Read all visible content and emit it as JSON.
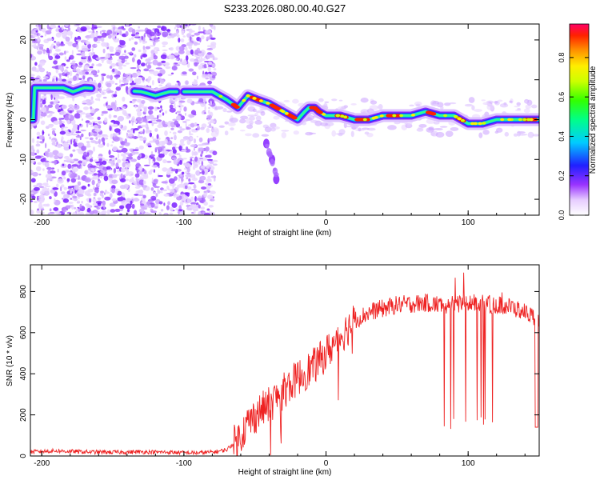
{
  "title": "S233.2026.080.00.40.G27",
  "chart_data": [
    {
      "type": "heatmap",
      "xlabel": "Height of straight line (km)",
      "ylabel": "Frequency (Hz)",
      "xlim": [
        -208,
        150
      ],
      "ylim": [
        -24,
        24
      ],
      "xticks": [
        -200,
        -100,
        0,
        100
      ],
      "yticks": [
        -20,
        -10,
        0,
        10,
        20
      ],
      "colorbar": {
        "label": "Normalized spectral amplitude",
        "range": [
          0,
          0.97
        ],
        "ticks": [
          "0.0",
          "0.2",
          "0.4",
          "0.6",
          "0.8"
        ],
        "tick_values": [
          0,
          0.2,
          0.4,
          0.6,
          0.8
        ]
      },
      "ridge": {
        "x": [
          -205,
          -195,
          -185,
          -178,
          -170,
          -130,
          -120,
          -110,
          -100,
          -90,
          -80,
          -70,
          -62,
          -55,
          -48,
          -40,
          -30,
          -25,
          -20,
          -15,
          -12,
          -8,
          -5,
          0,
          10,
          20,
          30,
          40,
          50,
          60,
          70,
          80,
          90,
          100,
          110,
          120,
          130,
          140,
          150
        ],
        "y": [
          8,
          8,
          8,
          7,
          8,
          7,
          6,
          7,
          7,
          7,
          7,
          5,
          3,
          6,
          5,
          4,
          2,
          1,
          0,
          2,
          3,
          3,
          2,
          1,
          1,
          0,
          0,
          1,
          1,
          1,
          2,
          1,
          1,
          -1,
          -1,
          0,
          0,
          0,
          0
        ]
      },
      "secondary_trace": {
        "x": [
          -42,
          -38,
          -35
        ],
        "y": [
          -6,
          -10,
          -15
        ]
      }
    },
    {
      "type": "line",
      "xlabel": "Height of straight line (km)",
      "ylabel": "SNR (10 * v/v)",
      "xlim": [
        -208,
        150
      ],
      "ylim": [
        0,
        930
      ],
      "xticks": [
        -200,
        -100,
        0,
        100
      ],
      "yticks": [
        0,
        200,
        400,
        600,
        800
      ],
      "series": [
        {
          "color": "#ee2222",
          "x": [
            -208,
            -190,
            -170,
            -150,
            -130,
            -110,
            -90,
            -78,
            -70,
            -62,
            -55,
            -48,
            -40,
            -32,
            -25,
            -18,
            -10,
            -5,
            0,
            5,
            10,
            15,
            20,
            28,
            35,
            42,
            50,
            60,
            70,
            80,
            90,
            100,
            110,
            120,
            130,
            140,
            150
          ],
          "values": [
            20,
            25,
            20,
            18,
            20,
            18,
            15,
            20,
            30,
            80,
            160,
            210,
            250,
            300,
            350,
            390,
            430,
            460,
            500,
            540,
            580,
            620,
            660,
            690,
            710,
            720,
            735,
            740,
            745,
            735,
            740,
            745,
            740,
            735,
            725,
            700,
            660
          ]
        }
      ]
    }
  ]
}
